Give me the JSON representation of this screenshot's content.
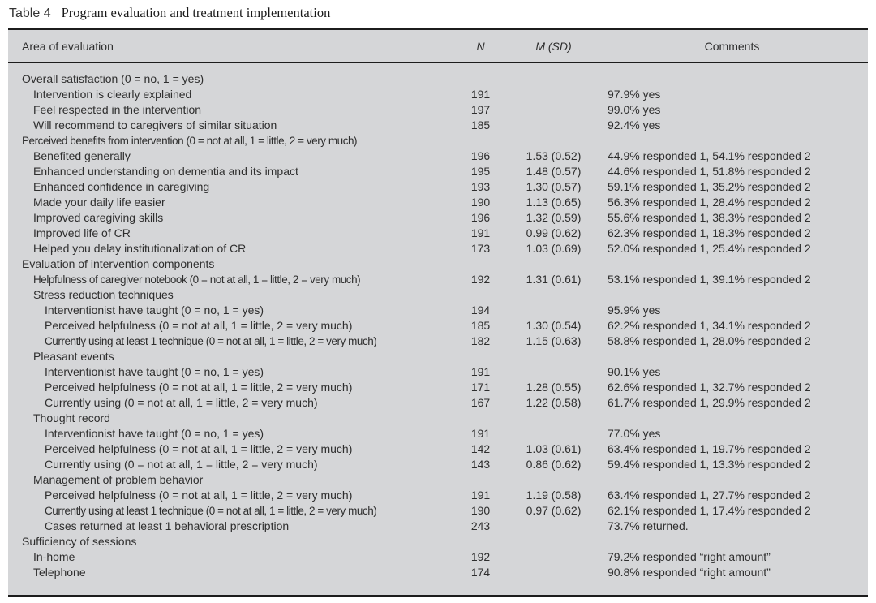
{
  "title": {
    "label": "Table 4",
    "text": "Program evaluation and treatment implementation"
  },
  "table": {
    "columns": [
      "Area of evaluation",
      "N",
      "M (SD)",
      "Comments"
    ],
    "rows": [
      {
        "indent": 0,
        "label": "Overall satisfaction (0 = no, 1 = yes)",
        "n": "",
        "msd": "",
        "comments": ""
      },
      {
        "indent": 1,
        "label": "Intervention is clearly explained",
        "n": "191",
        "msd": "",
        "comments": "97.9% yes"
      },
      {
        "indent": 1,
        "label": "Feel respected in the intervention",
        "n": "197",
        "msd": "",
        "comments": "99.0% yes"
      },
      {
        "indent": 1,
        "label": "Will recommend to caregivers of similar situation",
        "n": "185",
        "msd": "",
        "comments": "92.4% yes"
      },
      {
        "indent": 0,
        "label": "Perceived benefits from intervention (0 = not at all, 1 = little, 2 = very much)",
        "n": "",
        "msd": "",
        "comments": ""
      },
      {
        "indent": 1,
        "label": "Benefited generally",
        "n": "196",
        "msd": "1.53 (0.52)",
        "comments": "44.9% responded 1, 54.1% responded 2"
      },
      {
        "indent": 1,
        "label": "Enhanced understanding on dementia and its impact",
        "n": "195",
        "msd": "1.48 (0.57)",
        "comments": "44.6% responded 1, 51.8% responded 2"
      },
      {
        "indent": 1,
        "label": "Enhanced confidence in caregiving",
        "n": "193",
        "msd": "1.30 (0.57)",
        "comments": "59.1% responded 1, 35.2% responded 2"
      },
      {
        "indent": 1,
        "label": "Made your daily life easier",
        "n": "190",
        "msd": "1.13 (0.65)",
        "comments": "56.3% responded 1, 28.4% responded 2"
      },
      {
        "indent": 1,
        "label": "Improved caregiving skills",
        "n": "196",
        "msd": "1.32 (0.59)",
        "comments": "55.6% responded 1, 38.3% responded 2"
      },
      {
        "indent": 1,
        "label": "Improved life of CR",
        "n": "191",
        "msd": "0.99 (0.62)",
        "comments": "62.3% responded 1, 18.3% responded 2"
      },
      {
        "indent": 1,
        "label": "Helped you delay institutionalization of CR",
        "n": "173",
        "msd": "1.03 (0.69)",
        "comments": "52.0% responded 1, 25.4% responded 2"
      },
      {
        "indent": 0,
        "label": "Evaluation of intervention components",
        "n": "",
        "msd": "",
        "comments": ""
      },
      {
        "indent": 1,
        "label": "Helpfulness of caregiver notebook (0 = not at all, 1 = little, 2 = very much)",
        "n": "192",
        "msd": "1.31 (0.61)",
        "comments": "53.1% responded 1, 39.1% responded 2"
      },
      {
        "indent": 1,
        "label": "Stress reduction techniques",
        "n": "",
        "msd": "",
        "comments": ""
      },
      {
        "indent": 2,
        "label": "Interventionist have taught (0 = no, 1 = yes)",
        "n": "194",
        "msd": "",
        "comments": "95.9% yes"
      },
      {
        "indent": 2,
        "label": "Perceived helpfulness (0 = not at all, 1 = little, 2 = very much)",
        "n": "185",
        "msd": "1.30 (0.54)",
        "comments": "62.2% responded 1, 34.1% responded 2"
      },
      {
        "indent": 2,
        "label": "Currently using at least 1 technique (0 = not at all, 1 = little, 2 = very much)",
        "n": "182",
        "msd": "1.15 (0.63)",
        "comments": "58.8% responded 1, 28.0% responded 2"
      },
      {
        "indent": 1,
        "label": "Pleasant events",
        "n": "",
        "msd": "",
        "comments": ""
      },
      {
        "indent": 2,
        "label": "Interventionist have taught (0 = no, 1 = yes)",
        "n": "191",
        "msd": "",
        "comments": "90.1% yes"
      },
      {
        "indent": 2,
        "label": "Perceived helpfulness (0 = not at all, 1 = little, 2 = very much)",
        "n": "171",
        "msd": "1.28 (0.55)",
        "comments": "62.6% responded 1, 32.7% responded 2"
      },
      {
        "indent": 2,
        "label": "Currently using (0 = not at all, 1 = little, 2 = very much)",
        "n": "167",
        "msd": "1.22 (0.58)",
        "comments": "61.7% responded 1, 29.9% responded 2"
      },
      {
        "indent": 1,
        "label": "Thought record",
        "n": "",
        "msd": "",
        "comments": ""
      },
      {
        "indent": 2,
        "label": "Interventionist have taught (0 = no, 1 = yes)",
        "n": "191",
        "msd": "",
        "comments": "77.0% yes"
      },
      {
        "indent": 2,
        "label": "Perceived helpfulness (0 = not at all, 1 = little, 2 = very much)",
        "n": "142",
        "msd": "1.03 (0.61)",
        "comments": "63.4% responded 1, 19.7% responded 2"
      },
      {
        "indent": 2,
        "label": "Currently using (0 = not at all, 1 = little, 2 = very much)",
        "n": "143",
        "msd": "0.86 (0.62)",
        "comments": "59.4% responded 1, 13.3% responded 2"
      },
      {
        "indent": 1,
        "label": "Management of problem behavior",
        "n": "",
        "msd": "",
        "comments": ""
      },
      {
        "indent": 2,
        "label": "Perceived helpfulness (0 = not at all, 1 = little, 2 = very much)",
        "n": "191",
        "msd": "1.19 (0.58)",
        "comments": "63.4% responded 1, 27.7% responded 2"
      },
      {
        "indent": 2,
        "label": "Currently using at least 1 technique (0 = not at all, 1 = little, 2 = very much)",
        "n": "190",
        "msd": "0.97 (0.62)",
        "comments": "62.1% responded 1, 17.4% responded 2"
      },
      {
        "indent": 2,
        "label": "Cases returned at least 1 behavioral prescription",
        "n": "243",
        "msd": "",
        "comments": "73.7% returned."
      },
      {
        "indent": 0,
        "label": "Sufficiency of sessions",
        "n": "",
        "msd": "",
        "comments": ""
      },
      {
        "indent": 1,
        "label": "In-home",
        "n": "192",
        "msd": "",
        "comments": "79.2% responded “right amount”"
      },
      {
        "indent": 1,
        "label": "Telephone",
        "n": "174",
        "msd": "",
        "comments": "90.8% responded “right amount”"
      }
    ]
  }
}
